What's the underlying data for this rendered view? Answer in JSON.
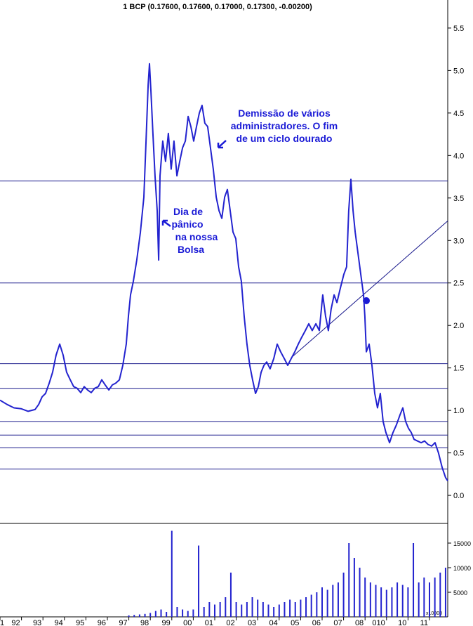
{
  "chart_data": [
    {
      "type": "line",
      "title": "1 BCP (0.17600, 0.17600, 0.17000, 0.17300, -0.00200)",
      "color": "#2323cf",
      "x": [
        1991.0,
        1991.33,
        1991.65,
        1991.98,
        1992.31,
        1992.63,
        1992.8,
        1992.96,
        1993.12,
        1993.29,
        1993.45,
        1993.61,
        1993.78,
        1993.94,
        1994.1,
        1994.27,
        1994.43,
        1994.59,
        1994.76,
        1994.92,
        1995.08,
        1995.25,
        1995.41,
        1995.58,
        1995.74,
        1995.9,
        1996.07,
        1996.23,
        1996.39,
        1996.56,
        1996.72,
        1996.88,
        1996.98,
        1997.08,
        1997.21,
        1997.37,
        1997.54,
        1997.7,
        1997.8,
        1997.9,
        1997.96,
        1998.03,
        1998.12,
        1998.22,
        1998.32,
        1998.39,
        1998.45,
        1998.58,
        1998.71,
        1998.84,
        1998.97,
        1999.1,
        1999.24,
        1999.37,
        1999.5,
        1999.63,
        1999.76,
        1999.89,
        2000.02,
        2000.15,
        2000.28,
        2000.41,
        2000.54,
        2000.67,
        2000.8,
        2000.93,
        2001.07,
        2001.2,
        2001.33,
        2001.46,
        2001.59,
        2001.72,
        2001.85,
        2001.98,
        2002.11,
        2002.24,
        2002.37,
        2002.5,
        2002.63,
        2002.76,
        2002.9,
        2003.03,
        2003.16,
        2003.29,
        2003.42,
        2003.58,
        2003.75,
        2003.91,
        2004.07,
        2004.24,
        2004.4,
        2004.56,
        2004.73,
        2004.89,
        2005.05,
        2005.22,
        2005.38,
        2005.54,
        2005.71,
        2005.87,
        2006.03,
        2006.16,
        2006.29,
        2006.42,
        2006.56,
        2006.69,
        2006.85,
        2007.01,
        2007.14,
        2007.24,
        2007.34,
        2007.44,
        2007.54,
        2007.67,
        2007.8,
        2007.93,
        2007.99,
        2008.06,
        2008.19,
        2008.32,
        2008.45,
        2008.58,
        2008.71,
        2008.84,
        2008.97,
        2009.14,
        2009.3,
        2009.46,
        2009.63,
        2009.76,
        2009.89,
        2010.02,
        2010.15,
        2010.28,
        2010.44,
        2010.61,
        2010.77,
        2010.93,
        2011.1,
        2011.26,
        2011.42,
        2011.59,
        2011.75,
        2011.85
      ],
      "values": [
        1.12,
        1.07,
        1.03,
        1.02,
        0.99,
        1.01,
        1.07,
        1.16,
        1.2,
        1.32,
        1.45,
        1.65,
        1.78,
        1.65,
        1.45,
        1.36,
        1.28,
        1.26,
        1.21,
        1.28,
        1.24,
        1.21,
        1.26,
        1.28,
        1.36,
        1.3,
        1.24,
        1.3,
        1.32,
        1.36,
        1.53,
        1.78,
        2.11,
        2.36,
        2.52,
        2.77,
        3.1,
        3.51,
        4.17,
        4.83,
        5.08,
        4.75,
        4.26,
        3.76,
        3.35,
        2.77,
        3.76,
        4.17,
        3.93,
        4.26,
        3.84,
        4.17,
        3.76,
        3.93,
        4.09,
        4.17,
        4.46,
        4.34,
        4.17,
        4.34,
        4.5,
        4.59,
        4.38,
        4.34,
        4.09,
        3.84,
        3.51,
        3.35,
        3.26,
        3.51,
        3.6,
        3.35,
        3.1,
        3.02,
        2.69,
        2.52,
        2.11,
        1.78,
        1.53,
        1.36,
        1.2,
        1.28,
        1.45,
        1.53,
        1.57,
        1.49,
        1.61,
        1.78,
        1.69,
        1.61,
        1.53,
        1.61,
        1.69,
        1.78,
        1.86,
        1.94,
        2.02,
        1.94,
        2.02,
        1.94,
        2.36,
        2.11,
        1.94,
        2.19,
        2.36,
        2.27,
        2.44,
        2.6,
        2.69,
        3.35,
        3.72,
        3.35,
        3.1,
        2.85,
        2.6,
        2.36,
        2.11,
        1.69,
        1.78,
        1.53,
        1.2,
        1.03,
        1.2,
        0.87,
        0.74,
        0.62,
        0.74,
        0.83,
        0.95,
        1.03,
        0.87,
        0.79,
        0.74,
        0.66,
        0.64,
        0.62,
        0.64,
        0.6,
        0.58,
        0.62,
        0.5,
        0.33,
        0.21,
        0.17
      ],
      "xlim": [
        1991,
        2011.85
      ],
      "ylim": [
        -0.33,
        5.83
      ],
      "yticks": [
        {
          "value": 0,
          "label": "0.0"
        },
        0.5,
        {
          "value": 1,
          "label": "1.0"
        },
        1.5,
        {
          "value": 2,
          "label": "2.0"
        },
        2.5,
        {
          "value": 3,
          "label": "3.0"
        },
        3.5,
        {
          "value": 4,
          "label": "4.0"
        },
        4.5,
        {
          "value": 5,
          "label": "5.0"
        },
        5.5
      ],
      "xticks": [
        {
          "value": 1991,
          "label": "1"
        },
        {
          "value": 1992,
          "label": "92"
        },
        {
          "value": 1993,
          "label": "93"
        },
        {
          "value": 1994,
          "label": "94"
        },
        {
          "value": 1995,
          "label": "95"
        },
        {
          "value": 1996,
          "label": "96"
        },
        {
          "value": 1997,
          "label": "97"
        },
        {
          "value": 1998,
          "label": "98"
        },
        {
          "value": 1999,
          "label": "99"
        },
        {
          "value": 2000,
          "label": "00"
        },
        {
          "value": 2001,
          "label": "01"
        },
        {
          "value": 2002,
          "label": "02"
        },
        {
          "value": 2003,
          "label": "03"
        },
        {
          "value": 2004,
          "label": "04"
        },
        {
          "value": 2005,
          "label": "05"
        },
        {
          "value": 2006,
          "label": "06"
        },
        {
          "value": 2007,
          "label": "07"
        },
        {
          "value": 2008,
          "label": "08"
        },
        {
          "value": 2009,
          "label": "010"
        },
        {
          "value": 2010,
          "label": "10"
        },
        {
          "value": 2011,
          "label": "11"
        }
      ],
      "hlines": [
        3.7,
        2.5,
        1.55,
        1.26,
        0.87,
        0.71,
        0.56,
        0.31
      ],
      "hline_color": "#1a1a8c",
      "trendline": {
        "x": [
          2004.56,
          2011.85
        ],
        "y": [
          1.62,
          3.23
        ]
      },
      "annotations": [
        [
          "Demissão de vários",
          "administradores. O fim",
          "de um ciclo dourado"
        ],
        [
          "Dia de",
          "pânico",
          "na nossa",
          "Bolsa"
        ]
      ]
    },
    {
      "type": "bar",
      "color": "#2323cf",
      "x": [
        1997.0,
        1997.25,
        1997.5,
        1997.75,
        1998.0,
        1998.25,
        1998.5,
        1998.75,
        1999.0,
        1999.25,
        1999.5,
        1999.75,
        2000.0,
        2000.25,
        2000.5,
        2000.75,
        2001.0,
        2001.25,
        2001.5,
        2001.75,
        2002.0,
        2002.25,
        2002.5,
        2002.75,
        2003.0,
        2003.25,
        2003.5,
        2003.75,
        2004.0,
        2004.25,
        2004.5,
        2004.75,
        2005.0,
        2005.25,
        2005.5,
        2005.75,
        2006.0,
        2006.25,
        2006.5,
        2006.75,
        2007.0,
        2007.25,
        2007.5,
        2007.75,
        2008.0,
        2008.25,
        2008.5,
        2008.75,
        2009.0,
        2009.25,
        2009.5,
        2009.75,
        2010.0,
        2010.25,
        2010.5,
        2010.75,
        2011.0,
        2011.25,
        2011.5,
        2011.75
      ],
      "values": [
        300,
        400,
        500,
        600,
        800,
        1200,
        1500,
        1000,
        17500,
        2000,
        1500,
        1200,
        1500,
        14500,
        2000,
        3000,
        2500,
        3000,
        4000,
        9000,
        3000,
        2500,
        3000,
        4000,
        3500,
        3000,
        2500,
        2000,
        2500,
        3000,
        3500,
        3000,
        3500,
        4000,
        4500,
        5000,
        6000,
        5500,
        6500,
        7000,
        9000,
        15000,
        12000,
        10000,
        8000,
        7000,
        6500,
        6000,
        5500,
        6000,
        7000,
        6500,
        6000,
        15000,
        7000,
        8000,
        7000,
        8000,
        9000,
        10000
      ],
      "ylim": [
        0,
        19000
      ],
      "yticks": [
        5000,
        10000,
        15000
      ],
      "unit_label": "x10000"
    }
  ]
}
